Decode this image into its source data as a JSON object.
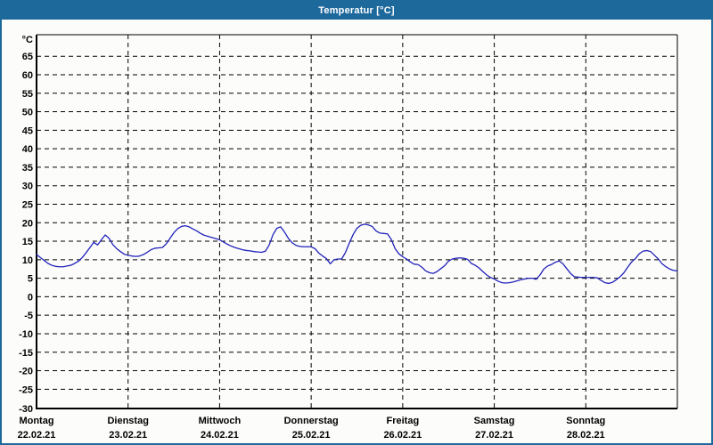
{
  "window": {
    "title": "Temperatur [°C]"
  },
  "colors": {
    "titlebar": "#1e699c",
    "window_border": "#1e699c",
    "line": "#2222bb",
    "grid": "#000000",
    "background": "#fcfdfa",
    "label_text": "#000000"
  },
  "chart_data": {
    "type": "line",
    "title": "Temperatur [°C]",
    "ylabel": "°C",
    "y_axis": {
      "unit_label": "°C",
      "min": -30,
      "max": 70,
      "ticks": [
        65,
        60,
        55,
        50,
        45,
        40,
        35,
        30,
        25,
        20,
        15,
        10,
        5,
        0,
        -5,
        -10,
        -15,
        -20,
        -25,
        -30
      ],
      "grid": "dashed"
    },
    "x_axis": {
      "grid": "dashed vertical line at each day start",
      "days": [
        {
          "name": "Montag",
          "date": "22.02.21"
        },
        {
          "name": "Dienstag",
          "date": "23.02.21"
        },
        {
          "name": "Mittwoch",
          "date": "24.02.21"
        },
        {
          "name": "Donnerstag",
          "date": "25.02.21"
        },
        {
          "name": "Freitag",
          "date": "26.02.21"
        },
        {
          "name": "Samstag",
          "date": "27.02.21"
        },
        {
          "name": "Sonntag",
          "date": "28.02.21"
        }
      ]
    },
    "series": [
      {
        "name": "Temperatur",
        "color": "#2222bb",
        "sampling": "hourly, 24 points per day starting Montag 00:00, last point Sonntag 24:00",
        "values": [
          11.4,
          10.6,
          9.8,
          9.0,
          8.5,
          8.2,
          8.1,
          8.1,
          8.3,
          8.5,
          9.0,
          9.6,
          10.6,
          11.9,
          13.3,
          14.7,
          14.0,
          15.4,
          16.7,
          15.8,
          14.1,
          13.0,
          12.2,
          11.5,
          11.2,
          11.0,
          10.9,
          11.0,
          11.4,
          12.0,
          12.7,
          13.1,
          13.2,
          13.3,
          14.3,
          15.8,
          17.3,
          18.4,
          19.0,
          19.2,
          18.9,
          18.3,
          17.8,
          17.1,
          16.6,
          16.3,
          16.0,
          15.7,
          15.4,
          14.8,
          14.2,
          13.7,
          13.3,
          13.0,
          12.7,
          12.5,
          12.4,
          12.2,
          12.1,
          12.0,
          12.3,
          14.0,
          16.8,
          18.5,
          18.9,
          17.5,
          15.8,
          14.6,
          13.9,
          13.6,
          13.5,
          13.5,
          13.5,
          13.0,
          11.8,
          11.0,
          10.3,
          8.9,
          10.0,
          10.2,
          10.2,
          12.0,
          14.5,
          16.8,
          18.5,
          19.3,
          19.6,
          19.4,
          19.0,
          17.8,
          17.2,
          17.1,
          17.0,
          15.5,
          13.0,
          11.6,
          10.8,
          10.2,
          9.4,
          8.8,
          8.7,
          8.0,
          7.0,
          6.5,
          6.3,
          6.8,
          7.6,
          8.4,
          9.6,
          10.2,
          10.4,
          10.5,
          10.4,
          10.1,
          9.0,
          8.5,
          7.8,
          6.8,
          5.9,
          5.2,
          4.8,
          4.2,
          3.8,
          3.7,
          3.8,
          4.0,
          4.3,
          4.6,
          4.8,
          5.0,
          5.0,
          4.7,
          5.9,
          7.5,
          8.3,
          8.7,
          9.3,
          9.7,
          8.9,
          7.6,
          6.3,
          5.4,
          5.3,
          5.2,
          5.2,
          5.2,
          5.2,
          5.1,
          4.4,
          3.8,
          3.6,
          3.9,
          4.6,
          5.4,
          6.5,
          8.0,
          9.4,
          10.3,
          11.6,
          12.3,
          12.5,
          12.2,
          11.2,
          10.2,
          8.9,
          8.1,
          7.5,
          7.1,
          7.0
        ]
      }
    ]
  }
}
